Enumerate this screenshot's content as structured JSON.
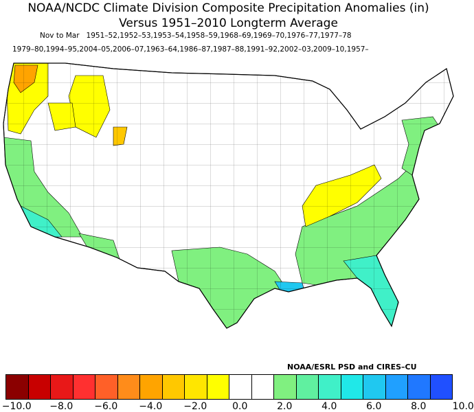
{
  "title_line1": "NOAA/NCDC Climate Division Composite Precipitation Anomalies (in)",
  "title_line2": "Versus 1951–2010 Longterm Average",
  "season_label": "Nov to Mar",
  "years_line1": "1951–52,1952–53,1953–54,1958–59,1968–69,1969–70,1976–77,1977–78",
  "years_line2": "1979–80,1994–95,2004–05,2006–07,1963–64,1986–87,1987–88,1991–92,2002–03,2009–10,1957–",
  "credit": "NOAA/ESRL PSD and CIRES–CU",
  "colorbar": {
    "colors": [
      "#8b0000",
      "#c80000",
      "#e81818",
      "#ff3030",
      "#ff6028",
      "#ff8c1a",
      "#ffa400",
      "#ffc800",
      "#ffe600",
      "#ffff00",
      "#ffffff",
      "#ffffff",
      "#80f080",
      "#60f0a0",
      "#40f0c8",
      "#20e8e8",
      "#20c8f0",
      "#20a0ff",
      "#2078ff",
      "#2050ff"
    ],
    "tick_labels": [
      "−10.0",
      "−8.0",
      "−6.0",
      "−4.0",
      "−2.0",
      "0.0",
      "2.0",
      "4.0",
      "6.0",
      "8.0",
      "10.0"
    ]
  },
  "legend_colors": {
    "dry": "#ffff00",
    "drier": "#ffc800",
    "driest": "#ffa400",
    "wet": "#80f080",
    "wetter": "#40f0c8",
    "wettest": "#20c8f0",
    "neutral": "#ffffff"
  }
}
